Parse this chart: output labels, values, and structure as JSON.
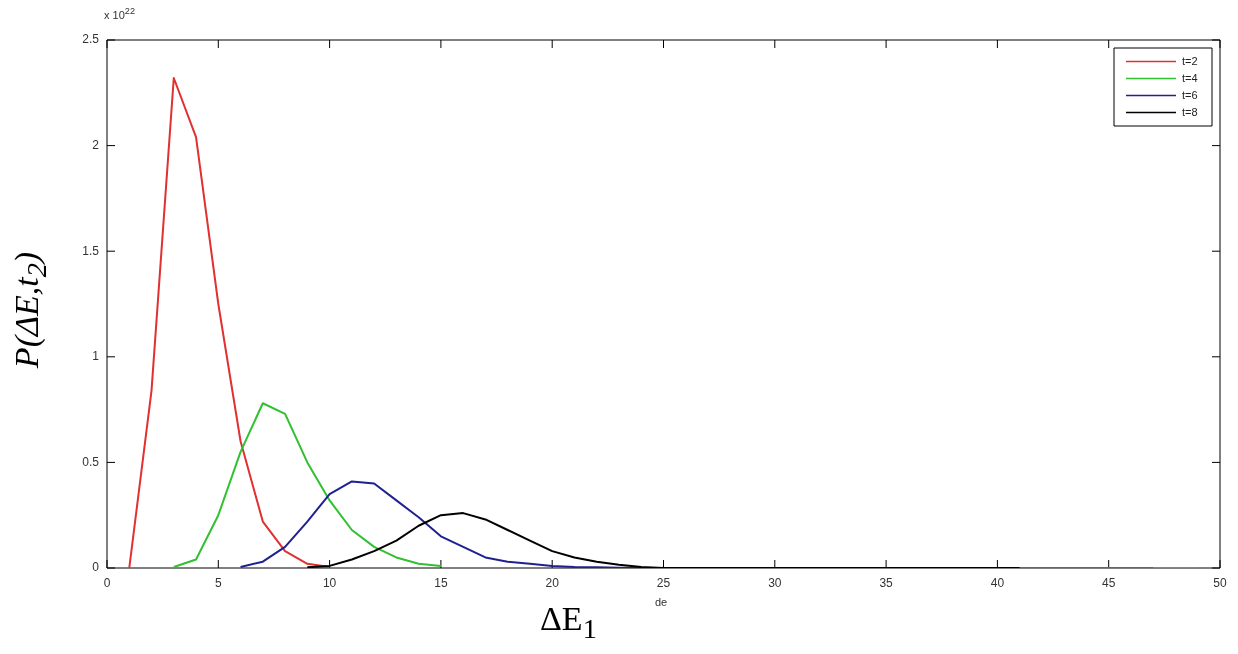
{
  "chart_data": {
    "type": "line",
    "xlabel": "ΔE$_{1}$",
    "ylabel": "P(ΔE,t$_{2}$)",
    "annotations": [
      "x 10$^{22}$",
      "de"
    ],
    "x": [
      1,
      2,
      3,
      4,
      5,
      6,
      7,
      8,
      9,
      10,
      11,
      12,
      13,
      14,
      15,
      16,
      17,
      18,
      19,
      20,
      21,
      22,
      23,
      24,
      25,
      26,
      27,
      28,
      29,
      30,
      31,
      32,
      33,
      34,
      35,
      36,
      37,
      38,
      39,
      40,
      41,
      42,
      43,
      44,
      45,
      46,
      47,
      48,
      49
    ],
    "series": [
      {
        "name": "t=2",
        "color": "#e03030",
        "values": [
          0,
          0.84,
          2.32,
          2.04,
          1.25,
          0.6,
          0.22,
          0.08,
          0.02,
          0.005,
          null,
          null,
          null,
          null,
          null,
          null,
          null,
          null,
          null,
          null,
          null,
          null,
          null,
          null,
          null,
          null,
          null,
          null,
          null,
          null,
          null,
          null,
          null,
          null,
          null,
          null,
          null,
          null,
          null,
          null,
          0,
          0,
          0,
          0,
          0,
          0,
          0,
          null,
          null
        ]
      },
      {
        "name": "t=4",
        "color": "#30c030",
        "values": [
          null,
          null,
          0.005,
          0.04,
          0.25,
          0.55,
          0.78,
          0.73,
          0.5,
          0.32,
          0.18,
          0.1,
          0.05,
          0.02,
          0.01,
          null,
          null,
          null,
          null,
          null,
          null,
          null,
          null,
          null,
          null,
          null,
          null,
          null,
          null,
          null,
          null,
          null,
          null,
          null,
          null,
          null,
          null,
          null,
          null,
          null,
          null,
          null,
          null,
          null,
          null,
          null,
          0,
          0,
          0
        ]
      },
      {
        "name": "t=6",
        "color": "#202090",
        "values": [
          null,
          null,
          null,
          null,
          null,
          0.005,
          0.03,
          0.1,
          0.22,
          0.35,
          0.41,
          0.4,
          0.32,
          0.24,
          0.15,
          0.1,
          0.05,
          0.03,
          0.02,
          0.01,
          0.005,
          0.003,
          0.001,
          0,
          null,
          null,
          null,
          null,
          null,
          null,
          null,
          null,
          null,
          null,
          null,
          null,
          null,
          null,
          null,
          null,
          null,
          null,
          null,
          null,
          null,
          null,
          null,
          null,
          null
        ]
      },
      {
        "name": "t=8",
        "color": "#000000",
        "values": [
          null,
          null,
          null,
          null,
          null,
          null,
          null,
          null,
          0.003,
          0.01,
          0.04,
          0.08,
          0.13,
          0.2,
          0.25,
          0.26,
          0.23,
          0.18,
          0.13,
          0.08,
          0.05,
          0.03,
          0.015,
          0.005,
          0,
          0,
          0,
          0,
          0,
          0,
          0,
          0,
          0,
          0,
          0,
          0,
          0,
          0,
          0,
          0,
          0,
          null,
          null,
          null,
          null,
          null,
          null,
          null,
          null
        ]
      }
    ],
    "xlim": [
      0,
      50
    ],
    "xticks": [
      0,
      5,
      10,
      15,
      20,
      25,
      30,
      35,
      40,
      45,
      50
    ],
    "ylim": [
      0,
      2.5
    ],
    "yticks": [
      0,
      0.5,
      1,
      1.5,
      2,
      2.5
    ],
    "legend": "top right",
    "grid": false,
    "marker": "none",
    "line_style": "solid"
  }
}
